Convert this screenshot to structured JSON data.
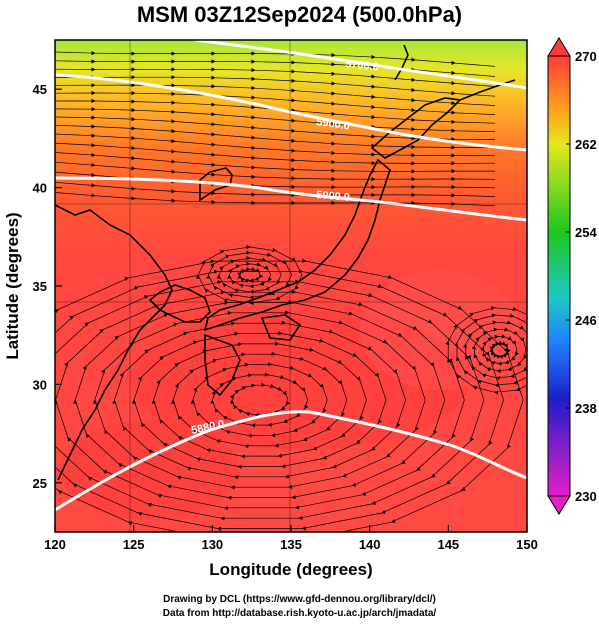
{
  "title": "MSM 03Z12Sep2024 (500.0hPa)",
  "x_axis": {
    "label": "Longitude (degrees)",
    "range": [
      120,
      150
    ],
    "ticks": [
      "120",
      "125",
      "130",
      "135",
      "140",
      "145",
      "150"
    ]
  },
  "y_axis": {
    "label": "Latitude  (degrees)",
    "range": [
      22.5,
      47.5
    ],
    "ticks": [
      "25",
      "30",
      "35",
      "40",
      "45"
    ]
  },
  "colorbar": {
    "range": [
      230,
      270
    ],
    "ticks": [
      "270",
      "262",
      "254",
      "246",
      "238",
      "230"
    ],
    "colors": [
      "#e01ec8",
      "#1e1ec8",
      "#1e78ff",
      "#1ec8c8",
      "#1ec81e",
      "#96dc1e",
      "#e6e61e",
      "#ffa01e",
      "#ff5a1e",
      "#ff3c3c"
    ]
  },
  "contours": [
    {
      "label": "5880.0",
      "lat_at_135": 29.2
    },
    {
      "label": "5900.0",
      "lat_at_135": 40.2
    },
    {
      "label": "5900.0",
      "lat_at_135": 43.3
    },
    {
      "label": "5700.0",
      "lat_at_135": 47.0
    }
  ],
  "contour_labels_shown": [
    "5880.0",
    "5900.0",
    "5900.0",
    "5700.0"
  ],
  "credits": [
    "Drawing by DCL (https://www.gfd-dennou.org/library/dcl/)",
    "Data from http://database.rish.kyoto-u.ac.jp/arch/jmadata/"
  ]
}
